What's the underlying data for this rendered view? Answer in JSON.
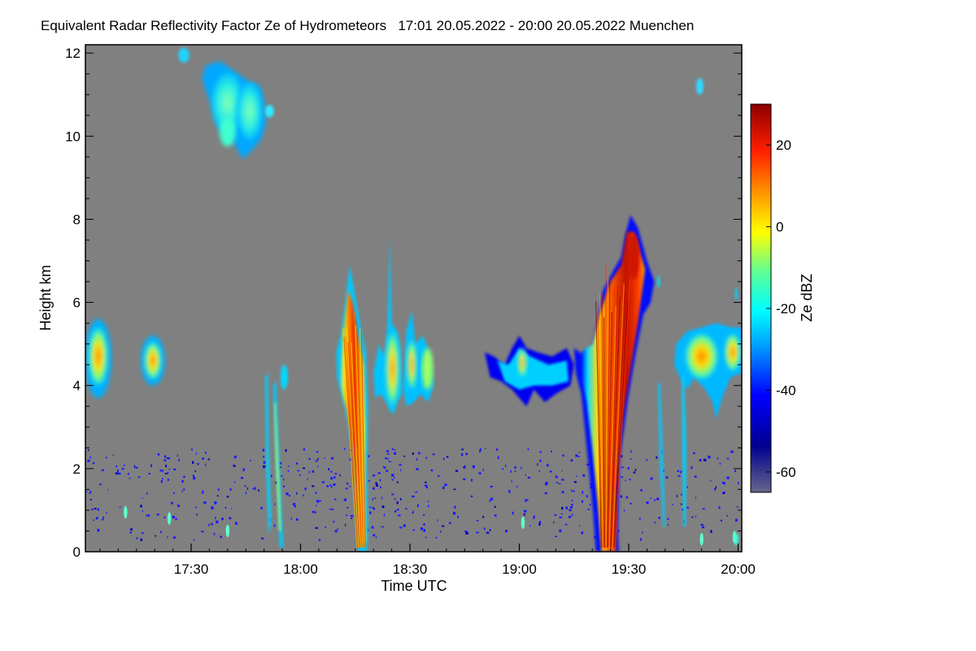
{
  "chart_data": {
    "type": "heatmap",
    "title": "Equivalent Radar Reflectivity Factor Ze of Hydrometeors",
    "period": "17:01 20.05.2022 - 20:00 20.05.2022",
    "location": "Muenchen",
    "xlabel": "Time UTC",
    "ylabel": "Height km",
    "x_range_minutes": [
      1021,
      1201
    ],
    "x_ticks": [
      {
        "label": "17:30",
        "minutes": 1050
      },
      {
        "label": "18:00",
        "minutes": 1080
      },
      {
        "label": "18:30",
        "minutes": 1110
      },
      {
        "label": "19:00",
        "minutes": 1140
      },
      {
        "label": "19:30",
        "minutes": 1170
      },
      {
        "label": "20:00",
        "minutes": 1200
      }
    ],
    "y_range_km": [
      0,
      12.2
    ],
    "y_ticks": [
      0,
      2,
      4,
      6,
      8,
      10,
      12
    ],
    "colorbar": {
      "label": "Ze dBZ",
      "range": [
        -65,
        30
      ],
      "ticks": [
        20,
        0,
        -20,
        -40,
        -60
      ]
    },
    "background_color": "#808080",
    "echoes": [
      {
        "name": "cirrus-layer",
        "t_start": 1053,
        "t_end": 1071,
        "h_bottom": 9.4,
        "h_top": 12.1,
        "ze_peak": -22
      },
      {
        "name": "small-cirrus-right",
        "t_start": 1188,
        "t_end": 1191,
        "h_bottom": 11.0,
        "h_top": 11.5,
        "ze_peak": -25
      },
      {
        "name": "midlevel-cell-1",
        "t_start": 1021,
        "t_end": 1028,
        "h_bottom": 3.6,
        "h_top": 5.7,
        "ze_peak": 5
      },
      {
        "name": "midlevel-cell-2",
        "t_start": 1036,
        "t_end": 1043,
        "h_bottom": 3.9,
        "h_top": 5.2,
        "ze_peak": 0
      },
      {
        "name": "fallstreak-1",
        "t_start": 1070,
        "t_end": 1076,
        "h_bottom": 0.1,
        "h_top": 4.7,
        "ze_peak": -15
      },
      {
        "name": "convective-shower-1",
        "t_start": 1090,
        "t_end": 1099,
        "h_bottom": 0.0,
        "h_top": 6.9,
        "ze_peak": 18
      },
      {
        "name": "convective-shower-1-anvil",
        "t_start": 1100,
        "t_end": 1120,
        "h_bottom": 3.2,
        "h_top": 7.6,
        "ze_peak": -5
      },
      {
        "name": "midlevel-band",
        "t_start": 1131,
        "t_end": 1155,
        "h_bottom": 3.4,
        "h_top": 5.3,
        "ze_peak": -5
      },
      {
        "name": "convective-shower-2",
        "t_start": 1158,
        "t_end": 1178,
        "h_bottom": 0.0,
        "h_top": 8.1,
        "ze_peak": 28
      },
      {
        "name": "midlevel-cell-right",
        "t_start": 1184,
        "t_end": 1201,
        "h_bottom": 3.2,
        "h_top": 5.5,
        "ze_peak": 0
      },
      {
        "name": "boundary-layer-clutter",
        "t_start": 1021,
        "t_end": 1201,
        "h_bottom": 0.3,
        "h_top": 2.5,
        "ze_peak": -45
      }
    ]
  }
}
